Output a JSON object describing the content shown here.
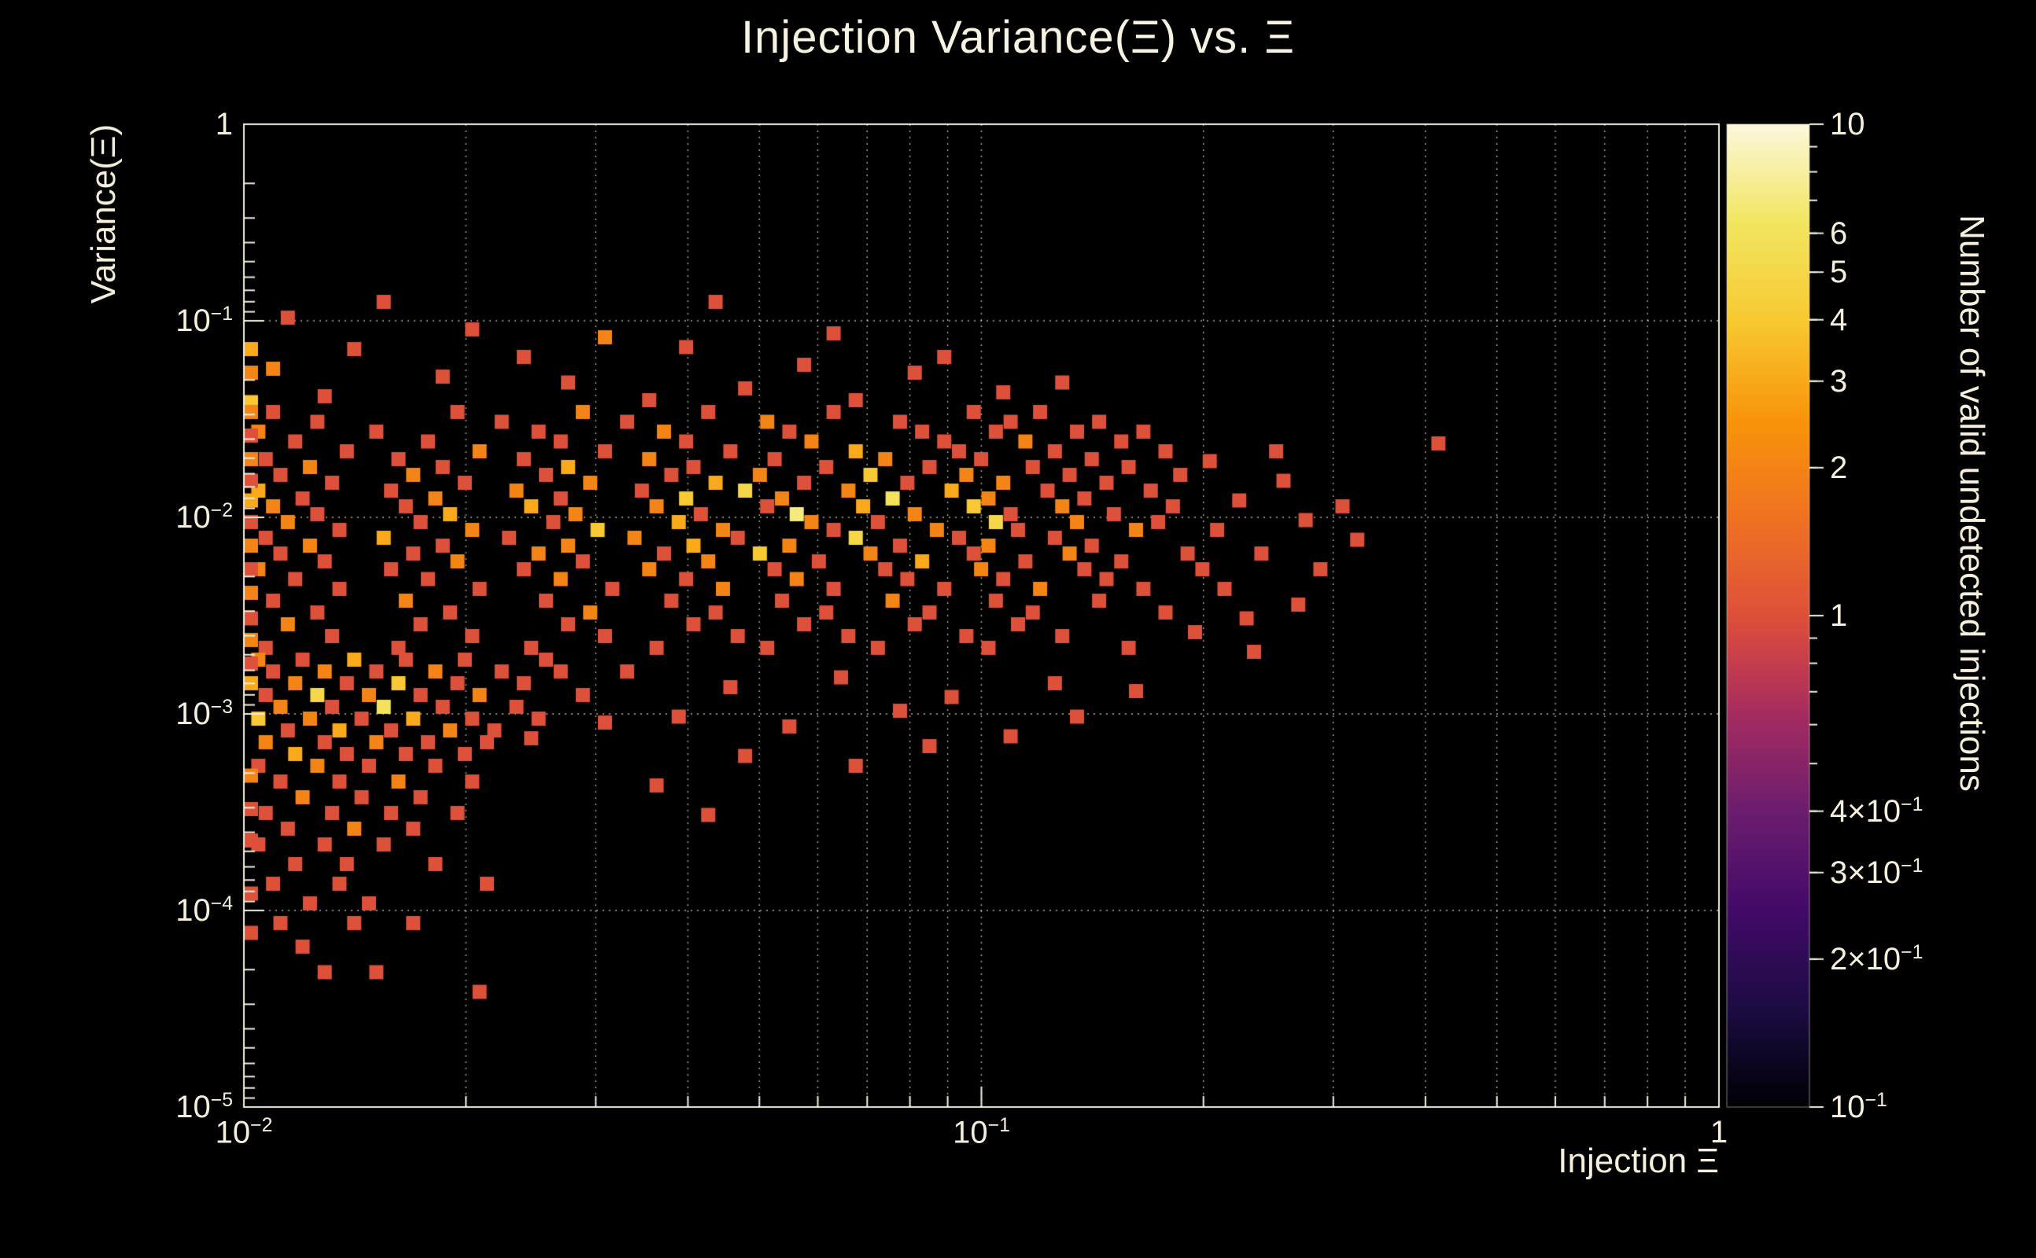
{
  "title": "Injection Variance(Ξ) vs. Ξ",
  "x_axis": {
    "title": "Injection Ξ",
    "scale": "log",
    "ticks": [
      {
        "m": "10",
        "e": "−2",
        "lx": -2
      },
      {
        "m": "10",
        "e": "−1",
        "lx": -1
      },
      {
        "m": "1",
        "lx": 0
      }
    ]
  },
  "y_axis": {
    "title": "Variance(Ξ)",
    "scale": "log",
    "ticks": [
      {
        "m": "1",
        "ly": 0
      },
      {
        "m": "10",
        "e": "−1",
        "ly": -1
      },
      {
        "m": "10",
        "e": "−2",
        "ly": -2
      },
      {
        "m": "10",
        "e": "−3",
        "ly": -3
      },
      {
        "m": "10",
        "e": "−4",
        "ly": -4
      },
      {
        "m": "10",
        "e": "−5",
        "ly": -5
      }
    ]
  },
  "colorbar": {
    "title": "Number of valid undetected injections",
    "scale": "log",
    "min": 0.1,
    "max": 10,
    "labels": [
      {
        "m": "10",
        "v": 10
      },
      {
        "m": "6",
        "v": 6
      },
      {
        "m": "5",
        "v": 5
      },
      {
        "m": "4",
        "v": 4
      },
      {
        "m": "3",
        "v": 3
      },
      {
        "m": "2",
        "v": 2
      },
      {
        "m": "1",
        "v": 1
      },
      {
        "m": "4×10",
        "e": "−1",
        "v": 0.4
      },
      {
        "m": "3×10",
        "e": "−1",
        "v": 0.3
      },
      {
        "m": "2×10",
        "e": "−1",
        "v": 0.2
      },
      {
        "m": "10",
        "e": "−1",
        "v": 0.1
      }
    ],
    "minor_tick_values": [
      0.2,
      0.3,
      0.4,
      0.5,
      0.6,
      0.7,
      0.8,
      0.9,
      2,
      3,
      4,
      5,
      6,
      7,
      8,
      9
    ]
  },
  "chart_data": {
    "type": "heatmap",
    "title": "Injection Variance(Ξ) vs. Ξ",
    "xlabel": "Injection Ξ",
    "ylabel": "Variance(Ξ)",
    "zlabel": "Number of valid undetected injections",
    "xlim": [
      0.01,
      1
    ],
    "ylim": [
      1e-05,
      1
    ],
    "zlim": [
      0.1,
      10
    ],
    "xscale": "log",
    "yscale": "log",
    "zscale": "log",
    "grid": true,
    "background": "#000000",
    "foreground": "#f6efdc",
    "palette": [
      [
        0,
        "#000004"
      ],
      [
        0.1,
        "#1b0c42"
      ],
      [
        0.2,
        "#420a68"
      ],
      [
        0.3,
        "#6b1d6e"
      ],
      [
        0.4,
        "#a52c60"
      ],
      [
        0.47,
        "#cf4446"
      ],
      [
        0.5,
        "#dd513a"
      ],
      [
        0.6,
        "#ef7222"
      ],
      [
        0.7,
        "#f9950a"
      ],
      [
        0.8,
        "#f8c932"
      ],
      [
        0.9,
        "#f2e661"
      ],
      [
        1,
        "#fcf8dd"
      ]
    ],
    "points_log10": "-1.97,-1.5,1;-1.72,-1.5,1;-1.55,-1.5,2;-1.38,-1.5,1;-1.21,-1.5,1;-1.02,-1.5,1;-0.93,-1.5,1;-1.91,-1.55,1;-1.66,-1.55,1;-1.49,-1.55,1;-1.3,-1.55,2;-1.12,-1.55,1;-0.97,-1.55,1;-0.85,-1.55,1;-1.99,-1.6,2;-1.83,-1.6,1;-1.61,-1.6,1;-1.44,-1.6,2;-1.27,-1.6,1;-1.09,-1.6,1;-0.99,-1.6,1;-0.88,-1.6,1;-0.79,-1.6,1;-1.94,-1.65,1;-1.76,-1.65,1;-1.58,-1.65,1;-1.41,-1.65,1;-1.24,-1.65,2;-1.06,-1.65,1;-0.95,-1.65,2;-0.82,-1.65,1;-1.87,-1.7,1;-1.69,-1.7,2;-1.52,-1.7,1;-1.35,-1.7,1;-1.18,-1.7,3;-1.04,-1.7,1;-0.91,-1.7,1;-0.76,-1.7,1;-1.98,-1.74,1;-1.8,-1.74,1;-1.63,-1.74,1;-1.46,-1.74,2;-1.29,-1.74,1;-1.14,-1.74,2;-1.01,-1.74,1;-0.86,-1.74,1;-1.92,-1.78,2;-1.74,-1.78,1;-1.57,-1.78,3;-1.4,-1.78,1;-1.22,-1.78,1;-1.08,-1.78,1;-0.94,-1.78,1;-0.81,-1.78,1;-1.96,-1.82,1;-1.78,-1.82,2;-1.6,-1.82,1;-1.43,-1.82,1;-1.31,-1.82,2;-1.16,-1.82,4;-1.03,-1.82,2;-0.89,-1.82,1;-0.74,-1.82,1;-1.89,-1.86,1;-1.71,-1.86,1;-1.54,-1.86,2;-1.37,-1.86,3;-1.25,-1.86,1;-1.11,-1.86,1;-0.98,-1.86,2;-0.84,-1.86,1;-1.99,-1.9,3;-1.81,-1.9,1;-1.64,-1.9,2;-1.47,-1.9,1;-1.33,-1.9,5;-1.19,-1.9,2;-1.05,-1.9,3;-0.92,-1.9,1;-0.78,-1.9,1;-1.93,-1.94,1;-1.75,-1.94,2;-1.58,-1.94,1;-1.41,-1.94,4;-1.28,-1.94,2;-1.13,-1.94,6;-1,-1.94,2;-0.87,-1.94,1;-1.97,-1.98,2;-1.79,-1.98,1;-1.62,-1.98,3;-1.45,-1.98,2;-1.3,-1.98,1;-1.17,-1.98,3;-1.02,-1.98,4;-0.9,-1.98,2;-0.75,-1.98,1;-1.91,-2.02,1;-1.73,-2.02,3;-1.56,-2.02,2;-1.39,-2.02,1;-1.26,-2.02,7;-1.1,-2.02,2;-0.97,-2.02,1;-0.83,-2.02,1;-1.95,-2.06,2;-1.77,-2.06,1;-1.59,-2.06,1;-1.42,-2.06,3;-1.24,-2.06,2;-1.15,-2.06,1;-0.99,-2.06,5;-0.88,-2.06,2;-0.77,-2.06,1;-1.88,-2.1,1;-1.7,-2.1,2;-1.53,-2.1,4;-1.36,-2.1,2;-1.21,-2.1,1;-1.07,-2.1,2;-0.96,-2.1,1;-0.8,-2.1,2;-1.98,-2.14,1;-1.82,-2.14,3;-1.65,-2.14,1;-1.48,-2.14,2;-1.34,-2.14,1;-1.18,-2.14,5;-1.04,-2.14,1;-0.91,-2.14,1;-1.92,-2.18,2;-1.74,-2.18,1;-1.57,-2.18,2;-1.4,-2.18,3;-1.27,-2.18,2;-1.12,-2.18,1;-1,-2.18,2;-0.86,-2.18,1;-1.96,-2.22,1;-1.78,-2.22,1;-1.61,-2.22,2;-1.44,-2.22,1;-1.31,-2.22,4;-1.16,-2.22,2;-1.02,-2.22,1;-0.89,-2.22,2;-0.73,-2.22,1;-1.9,-2.26,1;-1.72,-2.26,2;-1.55,-2.26,1;-1.38,-2.26,2;-1.23,-2.26,1;-1.09,-2.26,3;-0.95,-2.26,1;-0.82,-2.26,1;-1.99,-2.3,2;-1.81,-2.3,1;-1.63,-2.3,1;-1.46,-2.3,2;-1.29,-2.3,1;-1.14,-2.3,1;-1.01,-2.3,2;-0.87,-2.3,1;-0.71,-2.3,1;-1.94,-2.35,1;-1.76,-2.35,1;-1.58,-2.35,2;-1.41,-2.35,1;-1.26,-2.35,2;-1.11,-2.35,1;-0.98,-2.35,1;-0.84,-2.35,1;-1.88,-2.4,1;-1.69,-2.4,1;-1.51,-2.4,1;-1.36,-2.4,2;-1.21,-2.4,1;-1.06,-2.4,1;-0.93,-2.4,2;-0.79,-2.4,1;-1.97,-2.46,1;-1.79,-2.46,2;-1.6,-2.46,1;-1.43,-2.46,1;-1.28,-2.46,1;-1.13,-2.46,2;-0.99,-2.46,1;-0.85,-2.46,1;-1.91,-2.52,1;-1.73,-2.52,1;-1.54,-2.52,2;-1.37,-2.52,1;-1.22,-2.52,1;-1.08,-2.52,1;-0.94,-2.52,1;-0.76,-2.52,1;-1.95,-2.58,2;-1.77,-2.58,1;-1.57,-2.58,1;-1.4,-2.58,1;-1.25,-2.58,1;-1.1,-2.58,1;-0.96,-2.58,1;-1.89,-2.64,1;-1.7,-2.64,1;-1.52,-2.64,1;-1.34,-2.64,1;-1.19,-2.64,1;-1.03,-2.64,1;-0.9,-2.64,1;-1.98,-2.7,1;-1.8,-2.7,1;-1.62,-2.7,1;-1.45,-2.7,1;-1.3,-2.7,1;-1.15,-2.7,1;-1,-2.7,1;-0.81,-2.7,1;-1.99,-2.76,2;-1.93,-2.76,1;-1.86,-2.76,3;-1.79,-2.76,1;-1.71,-2.76,1;-1.6,-2.76,1;-1.97,-2.82,1;-1.9,-2.82,2;-1.83,-2.82,1;-1.75,-2.82,2;-1.66,-2.82,1;-1.58,-2.82,1;-2,-2.88,3;-1.94,-2.88,2;-1.87,-2.88,1;-1.8,-2.88,4;-1.72,-2.88,1;-1.63,-2.88,1;-1.98,-2.94,1;-1.91,-2.94,5;-1.84,-2.94,2;-1.77,-2.94,1;-1.69,-2.94,2;-1.55,-2.94,1;-1.96,-3,2;-1.89,-3,1;-1.82,-3,6;-1.74,-3,1;-1.64,-3,1;-1.99,-3.06,4;-1.92,-3.06,2;-1.85,-3.06,1;-1.78,-3.06,3;-1.7,-3.06,1;-1.61,-3.06,1;-1.95,-3.12,1;-1.88,-3.12,3;-1.81,-3.12,1;-1.73,-3.12,2;-1.67,-3.12,1;-1.98,-3.18,2;-1.9,-3.18,1;-1.83,-3.18,2;-1.76,-3.18,1;-1.68,-3.18,1;-1.94,-3.24,3;-1.87,-3.24,1;-1.79,-3.24,1;-1.71,-3.24,1;-1.99,-3.3,1;-1.91,-3.3,2;-1.84,-3.3,1;-1.75,-3.3,1;-1.96,-3.38,1;-1.88,-3.38,1;-1.8,-3.38,2;-1.7,-3.38,1;-1.93,-3.46,2;-1.85,-3.46,1;-1.77,-3.46,1;-1.98,-3.54,1;-1.89,-3.54,1;-1.81,-3.54,1;-1.72,-3.54,1;-1.95,-3.62,1;-1.86,-3.62,2;-1.78,-3.62,1;-1.99,-3.7,1;-1.9,-3.7,1;-1.82,-3.7,1;-1.94,-3.8,1;-1.87,-3.8,1;-1.75,-3.8,1;-1.97,-3.9,1;-1.88,-3.9,1;-1.68,-3.9,1;-1.92,-4,1;-1.84,-4,1;-1.96,-4.1,1;-1.86,-4.1,1;-1.78,-4.1,1;-1.93,-4.22,1;-1.9,-4.35,1;-1.83,-4.35,1;-1.69,-4.45,1;-2,-1.18,3;-2,-1.3,2;-2,-1.45,4;-2,-1.5,2;-2,-1.62,1;-2,-1.74,2;-2,-1.85,1;-2,-1.95,3;-2,-2.06,1;-2,-2.18,2;-2,-2.3,1;-2,-2.42,2;-2,-2.55,1;-2,-2.66,2;-2,-2.78,1;-2,-3.35,2;-2,-3.52,1;-2,-3.68,1;-2,-3.95,1;-2,-4.15,1;-1.49,-2.82,1;-1.35,-2.9,1;-1.2,-2.85,1;-1.05,-2.95,1;-0.91,-2.88,1;-1.42,-3.05,1;-1.27,-3.1,1;-1.12,-3.02,1;-0.97,-3.15,1;-1.33,-3.25,1;-1.18,-3.3,1;-0.88,-3.05,1;-1.52,-3.08,1;-1.62,-3.16,1;-0.8,-2.92,1;-1.08,-3.2,1;-1.45,-3.4,1;-1.38,-3.55,1;-1.82,-0.94,1;-1.37,-0.94,1;-1.95,-1.02,1;-1.7,-1.08,1;-1.52,-1.12,2;-1.86,-1.18,1;-1.63,-1.22,1;-1.41,-1.17,1;-1.25,-1.26,1;-1.97,-1.28,2;-1.74,-1.32,1;-1.57,-1.35,1;-1.33,-1.38,1;-1.1,-1.3,1;-0.98,-1.4,1;-1.9,-1.42,1;-1.46,-1.44,1;-1.18,-1.44,1;-0.9,-1.35,1;-1.06,-1.22,1;-1.21,-1.1,1;-0.7,-1.75,1;-0.66,-1.95,1;-0.69,-2.1,1;-0.63,-2.22,1;-0.68,-2.4,1;-0.6,-1.85,1;-0.57,-2.05,1;-0.65,-2.55,1;-0.55,-2.3,1;-0.52,-1.98,1;-0.58,-2.48,1;-0.5,-2.15,1;-0.39,-1.66,1;-0.61,-1.7,1;-0.72,-2.62,1;-0.64,-2.72,1"
  }
}
